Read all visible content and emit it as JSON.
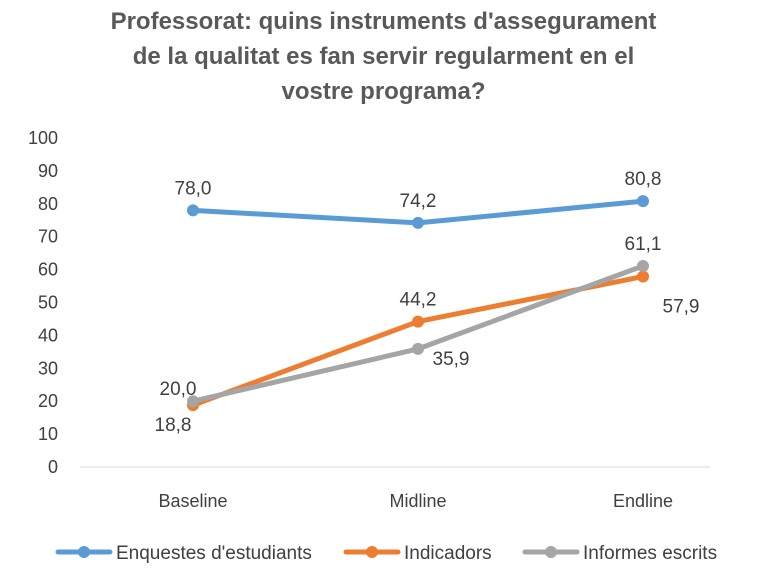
{
  "chart_data": {
    "type": "line",
    "title_lines": [
      "Professorat: quins instruments d'assegurament",
      "de la qualitat es fan servir regularment en el",
      "vostre programa?"
    ],
    "categories": [
      "Baseline",
      "Midline",
      "Endline"
    ],
    "ylim": [
      0,
      100
    ],
    "yticks": [
      "0",
      "10",
      "20",
      "30",
      "40",
      "50",
      "60",
      "70",
      "80",
      "90",
      "100"
    ],
    "grid": false,
    "legend_position": "bottom",
    "series": [
      {
        "name": "Enquestes d'estudiants",
        "color": "#5B9BD5",
        "values": [
          78.0,
          74.2,
          80.8
        ],
        "labels": [
          "78,0",
          "74,2",
          "80,8"
        ]
      },
      {
        "name": "Indicadors",
        "color": "#ED7D31",
        "values": [
          18.8,
          44.2,
          57.9
        ],
        "labels": [
          "18,8",
          "44,2",
          "57,9"
        ]
      },
      {
        "name": "Informes escrits",
        "color": "#A5A5A5",
        "values": [
          20.0,
          35.9,
          61.1
        ],
        "labels": [
          "20,0",
          "35,9",
          "61,1"
        ]
      }
    ]
  }
}
